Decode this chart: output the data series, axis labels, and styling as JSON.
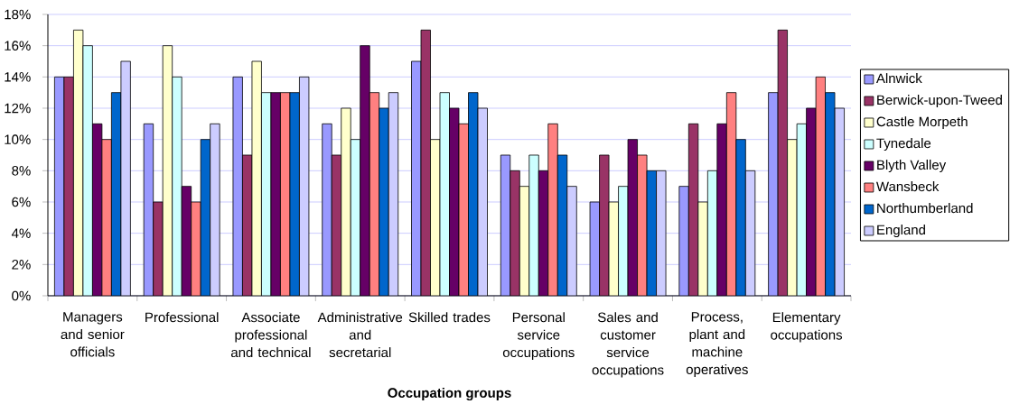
{
  "chart_data": {
    "type": "bar",
    "xlabel": "Occupation groups",
    "categories": [
      "Managers and senior officials",
      "Professional",
      "Associate professional and technical",
      "Administrative and secretarial",
      "Skilled trades",
      "Personal service occupations",
      "Sales and customer service occupations",
      "Process, plant and machine operatives",
      "Elementary occupations"
    ],
    "series": [
      {
        "name": "Alnwick",
        "color": "#9999ff",
        "values": [
          14,
          11,
          14,
          11,
          15,
          9,
          6,
          7,
          13
        ]
      },
      {
        "name": "Berwick-upon-Tweed",
        "color": "#993366",
        "values": [
          14,
          6,
          9,
          9,
          17,
          8,
          9,
          11,
          17
        ]
      },
      {
        "name": "Castle Morpeth",
        "color": "#ffffcc",
        "values": [
          17,
          16,
          15,
          12,
          10,
          7,
          6,
          6,
          10
        ]
      },
      {
        "name": "Tynedale",
        "color": "#ccffff",
        "values": [
          16,
          14,
          13,
          10,
          13,
          9,
          7,
          8,
          11
        ]
      },
      {
        "name": "Blyth Valley",
        "color": "#660066",
        "values": [
          11,
          7,
          13,
          16,
          12,
          8,
          10,
          11,
          12
        ]
      },
      {
        "name": "Wansbeck",
        "color": "#ff8080",
        "values": [
          10,
          6,
          13,
          13,
          11,
          11,
          9,
          13,
          14
        ]
      },
      {
        "name": "Northumberland",
        "color": "#0066cc",
        "values": [
          13,
          10,
          13,
          12,
          13,
          9,
          8,
          10,
          13
        ]
      },
      {
        "name": "England",
        "color": "#ccccff",
        "values": [
          15,
          11,
          14,
          13,
          12,
          7,
          8,
          8,
          12
        ]
      }
    ],
    "ylim": [
      0,
      18
    ],
    "yticks": [
      {
        "value": 0,
        "label": "0%"
      },
      {
        "value": 2,
        "label": "2%"
      },
      {
        "value": 4,
        "label": "4%"
      },
      {
        "value": 6,
        "label": "6%"
      },
      {
        "value": 8,
        "label": "8%"
      },
      {
        "value": 10,
        "label": "10%"
      },
      {
        "value": 12,
        "label": "12%"
      },
      {
        "value": 14,
        "label": "14%"
      },
      {
        "value": 16,
        "label": "16%"
      },
      {
        "value": 18,
        "label": "18%"
      }
    ],
    "grid": "y",
    "legend": "right"
  }
}
